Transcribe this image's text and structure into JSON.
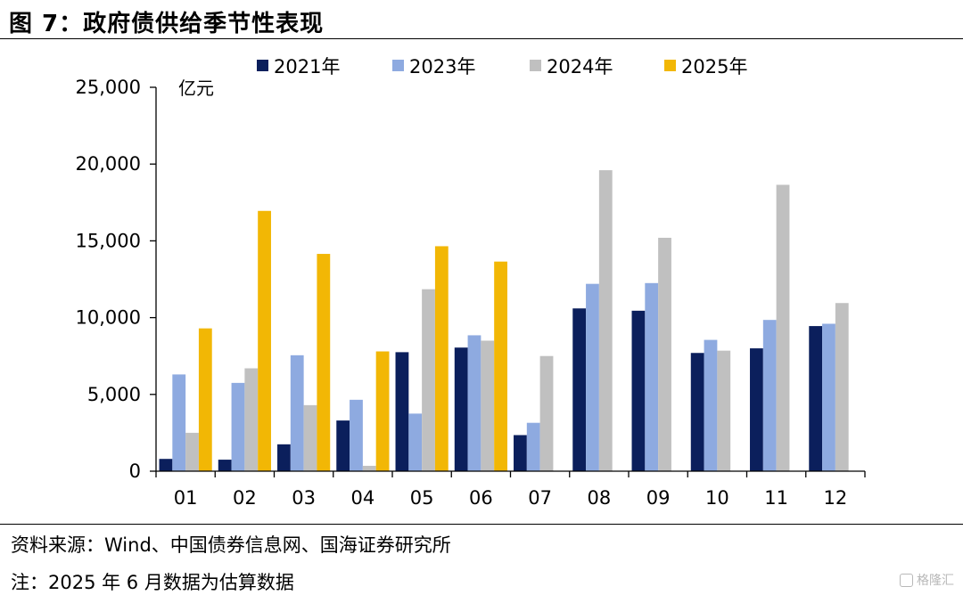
{
  "figure_title": "图 7：政府债供给季节性表现",
  "source": "资料来源：Wind、中国债券信息网、国海证券研究所",
  "note": "注：2025 年 6 月数据为估算数据",
  "watermark": "格隆汇",
  "chart_data": {
    "type": "bar",
    "title": "",
    "xlabel": "",
    "ylabel": "亿元",
    "ylim": [
      0,
      25000
    ],
    "yticks": [
      0,
      5000,
      10000,
      15000,
      20000,
      25000
    ],
    "ytick_labels": [
      "0",
      "5,000",
      "10,000",
      "15,000",
      "20,000",
      "25,000"
    ],
    "categories": [
      "01",
      "02",
      "03",
      "04",
      "05",
      "06",
      "07",
      "08",
      "09",
      "10",
      "11",
      "12"
    ],
    "grid": false,
    "legend_position": "top",
    "series": [
      {
        "name": "2021年",
        "color": "#0b1f5c",
        "values": [
          800,
          750,
          1750,
          3300,
          7750,
          8050,
          2350,
          10600,
          10450,
          7700,
          8000,
          9450
        ]
      },
      {
        "name": "2023年",
        "color": "#8eaae0",
        "values": [
          6300,
          5750,
          7550,
          4650,
          3750,
          8850,
          3150,
          12200,
          12250,
          8550,
          9850,
          9600
        ]
      },
      {
        "name": "2024年",
        "color": "#c0c0c0",
        "values": [
          2500,
          6700,
          4300,
          350,
          11850,
          8500,
          7500,
          19600,
          15200,
          7850,
          18650,
          10950
        ]
      },
      {
        "name": "2025年",
        "color": "#f2b705",
        "values": [
          9300,
          16950,
          14150,
          7800,
          14650,
          13650,
          null,
          null,
          null,
          null,
          null,
          null
        ]
      }
    ]
  }
}
